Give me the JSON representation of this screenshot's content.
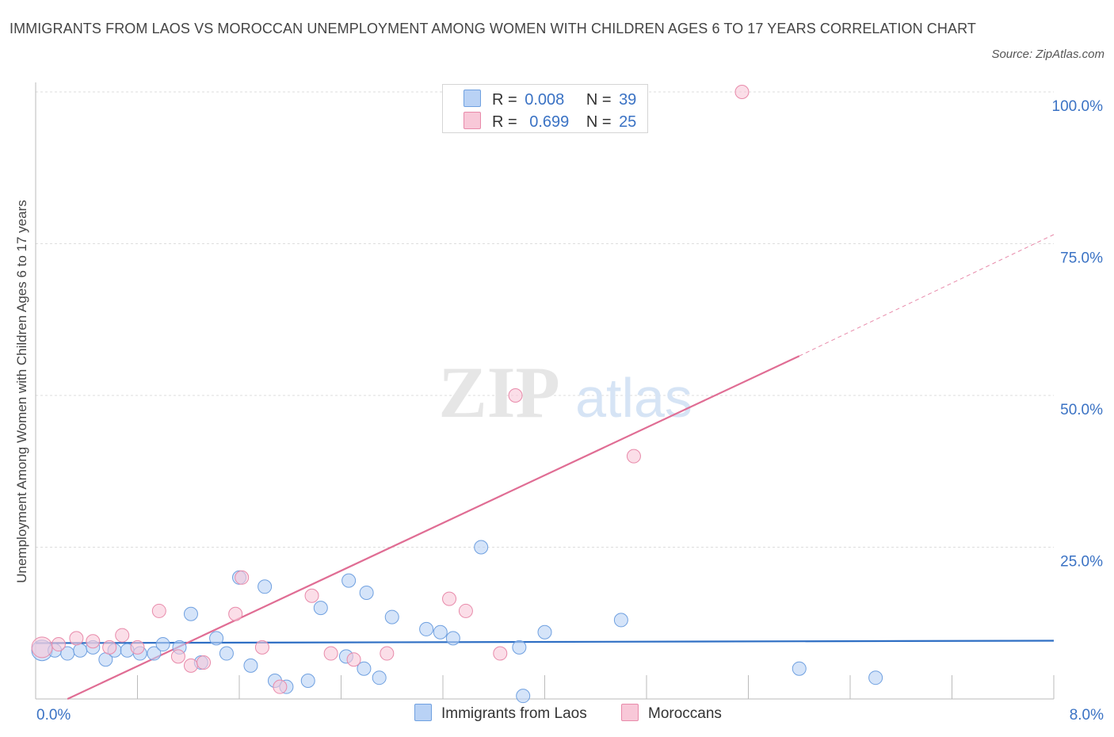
{
  "title": "IMMIGRANTS FROM LAOS VS MOROCCAN UNEMPLOYMENT AMONG WOMEN WITH CHILDREN AGES 6 TO 17 YEARS CORRELATION CHART",
  "source": "Source: ZipAtlas.com",
  "watermark": {
    "zip": "ZIP",
    "atlas": "atlas"
  },
  "legend": {
    "r_label": "R =",
    "n_label": "N =",
    "series": [
      {
        "name": "Immigrants from Laos",
        "r": "0.008",
        "n": "39",
        "color": "#6fa0e0",
        "fill": "#b9d2f5"
      },
      {
        "name": "Moroccans",
        "r": "0.699",
        "n": "25",
        "color": "#e88aaa",
        "fill": "#f8c8d8"
      }
    ]
  },
  "chart_data": {
    "type": "scatter",
    "title": "IMMIGRANTS FROM LAOS VS MOROCCAN UNEMPLOYMENT AMONG WOMEN WITH CHILDREN AGES 6 TO 17 YEARS CORRELATION CHART",
    "xlabel": "",
    "ylabel": "Unemployment Among Women with Children Ages 6 to 17 years",
    "xlim": [
      0,
      8
    ],
    "ylim": [
      0,
      100
    ],
    "x_tick_labels": [
      "0.0%",
      "8.0%"
    ],
    "y_ticks": [
      25,
      50,
      75,
      100
    ],
    "y_tick_labels": [
      "25.0%",
      "50.0%",
      "75.0%",
      "100.0%"
    ],
    "series": [
      {
        "name": "Immigrants from Laos",
        "color": "#6fa0e0",
        "fill": "#b9d2f5",
        "points": [
          [
            0.05,
            8.0
          ],
          [
            0.15,
            8.0
          ],
          [
            0.25,
            7.5
          ],
          [
            0.35,
            8.0
          ],
          [
            0.45,
            8.5
          ],
          [
            0.55,
            6.5
          ],
          [
            0.62,
            8.0
          ],
          [
            0.72,
            8.0
          ],
          [
            0.82,
            7.5
          ],
          [
            0.93,
            7.5
          ],
          [
            1.0,
            9.0
          ],
          [
            1.13,
            8.5
          ],
          [
            1.22,
            14.0
          ],
          [
            1.3,
            6.0
          ],
          [
            1.42,
            10.0
          ],
          [
            1.5,
            7.5
          ],
          [
            1.6,
            20.0
          ],
          [
            1.69,
            5.5
          ],
          [
            1.8,
            18.5
          ],
          [
            1.88,
            3.0
          ],
          [
            1.97,
            2.0
          ],
          [
            2.14,
            3.0
          ],
          [
            2.24,
            15.0
          ],
          [
            2.44,
            7.0
          ],
          [
            2.46,
            19.5
          ],
          [
            2.58,
            5.0
          ],
          [
            2.6,
            17.5
          ],
          [
            2.7,
            3.5
          ],
          [
            2.8,
            13.5
          ],
          [
            3.07,
            11.5
          ],
          [
            3.18,
            11.0
          ],
          [
            3.28,
            10.0
          ],
          [
            3.5,
            25.0
          ],
          [
            3.8,
            8.5
          ],
          [
            3.83,
            0.5
          ],
          [
            4.0,
            11.0
          ],
          [
            4.6,
            13.0
          ],
          [
            6.0,
            5.0
          ],
          [
            6.6,
            3.5
          ]
        ],
        "trend": {
          "x0": 0,
          "y0": 9.2,
          "x1": 8,
          "y1": 9.6
        }
      },
      {
        "name": "Moroccans",
        "color": "#e88aaa",
        "fill": "#f8c8d8",
        "points": [
          [
            0.05,
            8.5
          ],
          [
            0.18,
            9.0
          ],
          [
            0.32,
            10.0
          ],
          [
            0.45,
            9.5
          ],
          [
            0.58,
            8.5
          ],
          [
            0.68,
            10.5
          ],
          [
            0.8,
            8.5
          ],
          [
            0.97,
            14.5
          ],
          [
            1.12,
            7.0
          ],
          [
            1.22,
            5.5
          ],
          [
            1.32,
            6.0
          ],
          [
            1.57,
            14.0
          ],
          [
            1.62,
            20.0
          ],
          [
            1.78,
            8.5
          ],
          [
            1.92,
            2.0
          ],
          [
            2.17,
            17.0
          ],
          [
            2.32,
            7.5
          ],
          [
            2.5,
            6.5
          ],
          [
            2.76,
            7.5
          ],
          [
            3.25,
            16.5
          ],
          [
            3.38,
            14.5
          ],
          [
            3.65,
            7.5
          ],
          [
            3.77,
            50.0
          ],
          [
            4.7,
            40.0
          ],
          [
            5.55,
            100.0
          ]
        ],
        "trend": {
          "x0": 0.25,
          "y0": 0,
          "x1": 6.0,
          "y1": 56.5
        },
        "trend_dashed_to": {
          "x": 8,
          "y": 76.5
        }
      }
    ]
  }
}
